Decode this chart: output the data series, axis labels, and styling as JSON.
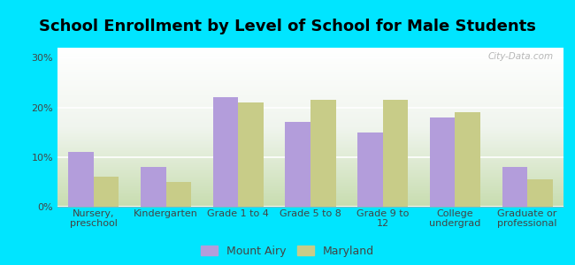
{
  "title": "School Enrollment by Level of School for Male Students",
  "categories": [
    "Nursery,\npreschool",
    "Kindergarten",
    "Grade 1 to 4",
    "Grade 5 to 8",
    "Grade 9 to\n12",
    "College\nundergrad",
    "Graduate or\nprofessional"
  ],
  "mount_airy": [
    11.0,
    8.0,
    22.0,
    17.0,
    15.0,
    18.0,
    8.0
  ],
  "maryland": [
    6.0,
    5.0,
    21.0,
    21.5,
    21.5,
    19.0,
    5.5
  ],
  "mount_airy_color": "#b39ddb",
  "maryland_color": "#c8cc88",
  "background_color": "#00e5ff",
  "plot_bg_color": "#e8f0dc",
  "yticks": [
    0,
    10,
    20,
    30
  ],
  "ylim": [
    0,
    32
  ],
  "bar_width": 0.35,
  "legend_labels": [
    "Mount Airy",
    "Maryland"
  ],
  "title_fontsize": 13,
  "axis_fontsize": 8,
  "legend_fontsize": 9,
  "watermark": "City-Data.com"
}
